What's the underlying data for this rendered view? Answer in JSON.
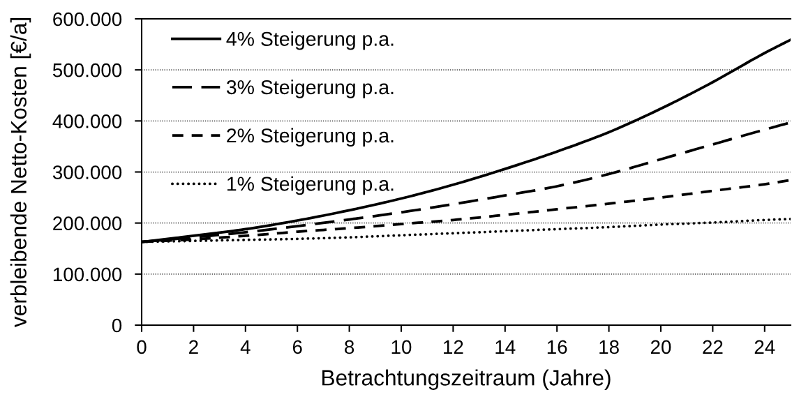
{
  "chart_data": {
    "type": "line",
    "xlabel": "Betrachtungszeitraum (Jahre)",
    "ylabel": "verbleibende Netto-Kosten [€/a]",
    "x": [
      0,
      2,
      4,
      6,
      8,
      10,
      12,
      14,
      16,
      18,
      20,
      22,
      24,
      25
    ],
    "series": [
      {
        "name": "4% Steigerung p.a.",
        "color": "#000000",
        "line_style": "solid",
        "values": [
          163000,
          175000,
          188000,
          205000,
          225000,
          248000,
          275000,
          306000,
          340000,
          378000,
          424000,
          476000,
          533000,
          559000
        ]
      },
      {
        "name": "3% Steigerung p.a.",
        "color": "#000000",
        "line_style": "dashed",
        "values": [
          163000,
          172000,
          182000,
          194000,
          207000,
          221000,
          237000,
          254000,
          272000,
          296000,
          325000,
          354000,
          383000,
          397000
        ]
      },
      {
        "name": "2% Steigerung p.a.",
        "color": "#000000",
        "line_style": "dashed",
        "values": [
          163000,
          168000,
          175000,
          183000,
          190000,
          198000,
          206000,
          216000,
          227000,
          238000,
          250000,
          263000,
          276000,
          284000
        ]
      },
      {
        "name": "1% Steigerung p.a.",
        "color": "#000000",
        "line_style": "dotted",
        "values": [
          163000,
          165000,
          167000,
          169000,
          172000,
          176000,
          180000,
          184000,
          188000,
          192000,
          197000,
          201000,
          206000,
          208000
        ]
      }
    ],
    "xlim": [
      0,
      25
    ],
    "xticks": [
      0,
      2,
      4,
      6,
      8,
      10,
      12,
      14,
      16,
      18,
      20,
      22,
      24
    ],
    "ylim": [
      0,
      600000
    ],
    "yticks": [
      0,
      {
        "value": 100000,
        "label": "100.000"
      },
      {
        "value": 200000,
        "label": "200.000"
      },
      {
        "value": 300000,
        "label": "300.000"
      },
      {
        "value": 400000,
        "label": "400.000"
      },
      {
        "value": 500000,
        "label": "500.000"
      },
      {
        "value": 600000,
        "label": "600.000"
      }
    ],
    "grid": "y",
    "legend": "top left",
    "marker": "none"
  }
}
